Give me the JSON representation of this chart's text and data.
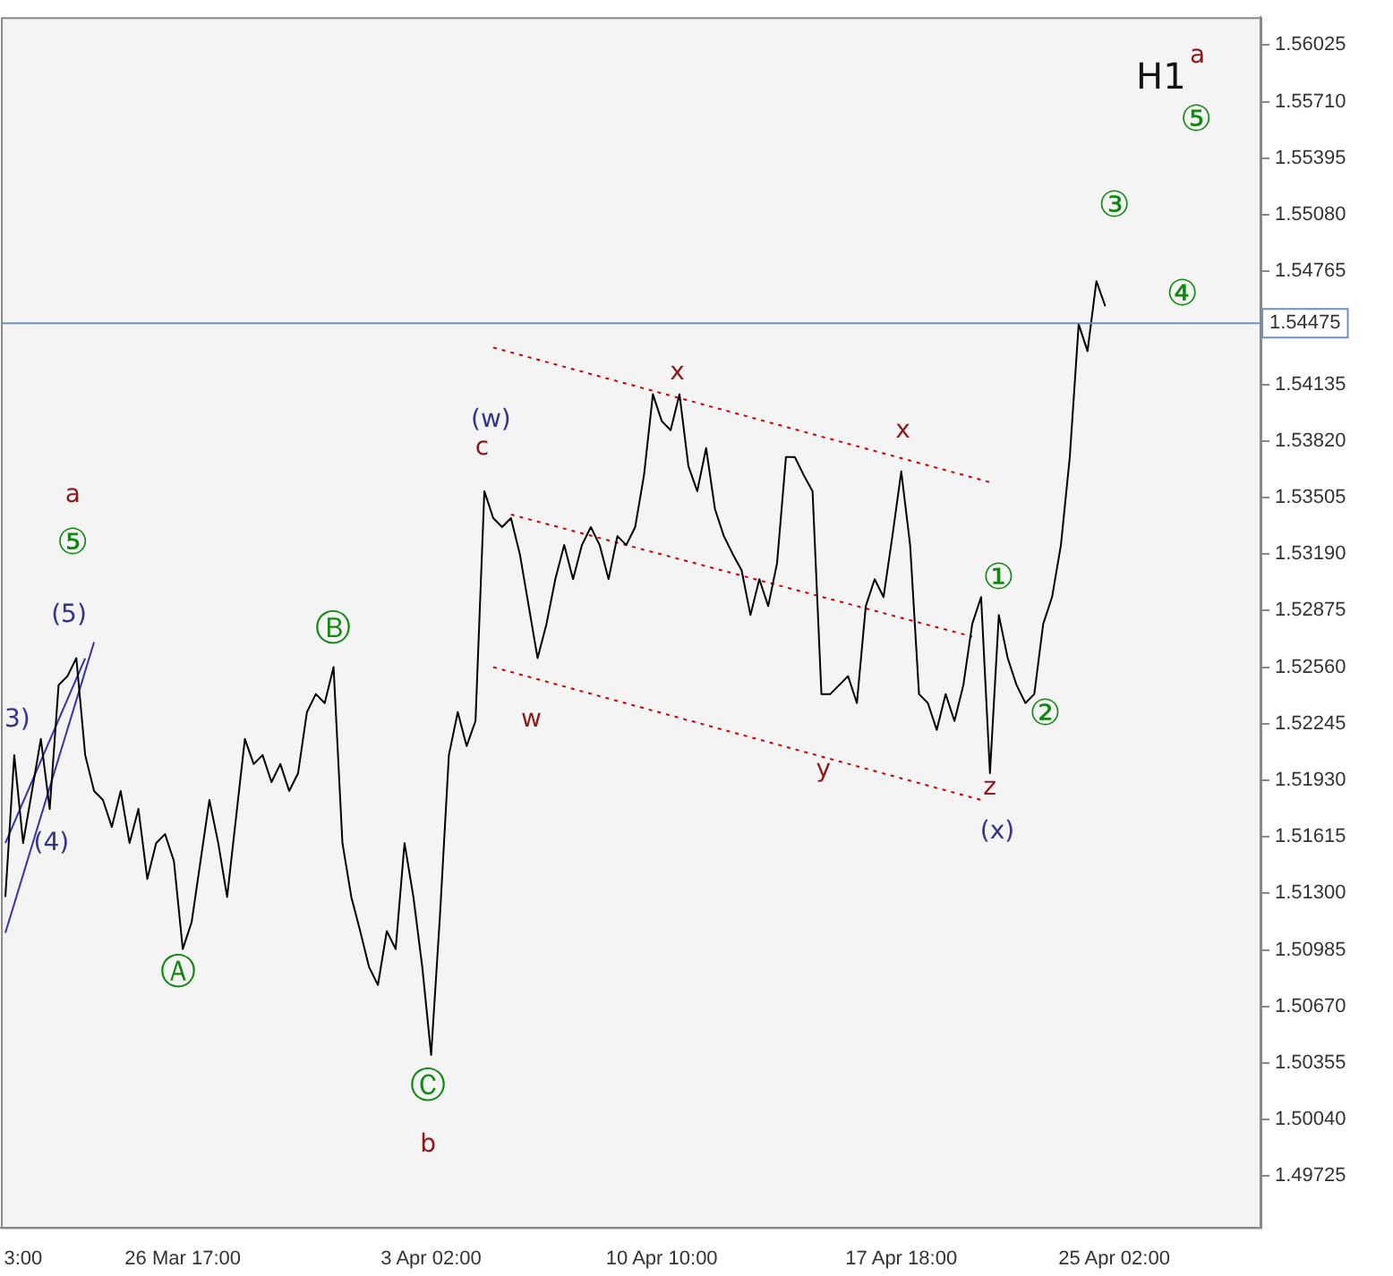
{
  "chart_data": {
    "type": "line",
    "categories": [
      null,
      null,
      "3:00",
      null,
      null,
      null,
      null,
      null,
      null,
      null,
      null,
      null,
      null,
      null,
      null,
      null,
      null,
      null,
      null,
      null,
      "26 Mar 17:00",
      null,
      null,
      null,
      null,
      null,
      null,
      null,
      null,
      null,
      null,
      null,
      null,
      null,
      null,
      null,
      null,
      null,
      null,
      null,
      null,
      null,
      null,
      null,
      null,
      null,
      null,
      null,
      "3 Apr 02:00",
      null,
      null,
      null,
      null,
      null,
      null,
      null,
      null,
      null,
      null,
      null,
      null,
      null,
      null,
      null,
      null,
      null,
      null,
      null,
      null,
      null,
      null,
      null,
      null,
      null,
      "10 Apr 10:00",
      null,
      null,
      null,
      null,
      null,
      null,
      null,
      null,
      null,
      null,
      null,
      null,
      null,
      null,
      null,
      null,
      null,
      null,
      null,
      null,
      null,
      null,
      null,
      null,
      null,
      null,
      "17 Apr 18:00",
      null,
      null,
      null,
      null,
      null,
      null,
      null,
      null,
      null,
      null,
      null,
      null,
      null,
      null,
      null,
      null,
      null,
      null,
      null,
      null,
      null,
      null,
      null,
      "25 Apr 02:00",
      null,
      null,
      null,
      null,
      null,
      null,
      null,
      null,
      null,
      null,
      null,
      null,
      null,
      null,
      null,
      null
    ],
    "ylim": [
      1.4944,
      1.5618
    ],
    "yticks": [
      {
        "value": 1.56025,
        "label": "1.56025"
      },
      {
        "value": 1.5571,
        "label": "1.55710"
      },
      {
        "value": 1.55395,
        "label": "1.55395"
      },
      {
        "value": 1.5508,
        "label": "1.55080"
      },
      {
        "value": 1.54765,
        "label": "1.54765"
      },
      {
        "value": 1.54135,
        "label": "1.54135"
      },
      {
        "value": 1.5382,
        "label": "1.53820"
      },
      {
        "value": 1.53505,
        "label": "1.53505"
      },
      {
        "value": 1.5319,
        "label": "1.53190"
      },
      {
        "value": 1.52875,
        "label": "1.52875"
      },
      {
        "value": 1.5256,
        "label": "1.52560"
      },
      {
        "value": 1.52245,
        "label": "1.52245"
      },
      {
        "value": 1.5193,
        "label": "1.51930"
      },
      {
        "value": 1.51615,
        "label": "1.51615"
      },
      {
        "value": 1.513,
        "label": "1.51300"
      },
      {
        "value": 1.50985,
        "label": "1.50985"
      },
      {
        "value": 1.5067,
        "label": "1.50670"
      },
      {
        "value": 1.50355,
        "label": "1.50355"
      },
      {
        "value": 1.5004,
        "label": "1.50040"
      },
      {
        "value": 1.49725,
        "label": "1.49725"
      }
    ],
    "grid": false,
    "legend": false,
    "marker": "none",
    "series": [
      {
        "color": "#000000",
        "line_style": "solid",
        "values": [
          1.5128,
          1.5207,
          1.5158,
          1.5187,
          1.5216,
          1.5177,
          1.5246,
          1.5251,
          1.5261,
          1.5207,
          1.5187,
          1.5182,
          1.5167,
          1.5187,
          1.5158,
          1.5177,
          1.5138,
          1.5158,
          1.5163,
          1.5148,
          1.5099,
          1.5114,
          1.5148,
          1.5182,
          1.5158,
          1.5128,
          1.5172,
          1.5216,
          1.5202,
          1.5207,
          1.5192,
          1.5202,
          1.5187,
          1.5197,
          1.5231,
          1.5241,
          1.5236,
          1.5256,
          1.5158,
          1.5128,
          1.5109,
          1.5089,
          1.5079,
          1.5109,
          1.5099,
          1.5158,
          1.5128,
          1.5089,
          1.504,
          1.5118,
          1.5207,
          1.5231,
          1.5212,
          1.5226,
          1.5354,
          1.5339,
          1.5334,
          1.5339,
          1.5319,
          1.529,
          1.5261,
          1.528,
          1.5305,
          1.5324,
          1.5305,
          1.5324,
          1.5334,
          1.5324,
          1.5305,
          1.5329,
          1.5324,
          1.5334,
          1.5363,
          1.5408,
          1.5393,
          1.5388,
          1.5408,
          1.5368,
          1.5354,
          1.5378,
          1.5344,
          1.5329,
          1.5319,
          1.531,
          1.5285,
          1.5305,
          1.529,
          1.5314,
          1.5373,
          1.5373,
          1.5363,
          1.5354,
          1.5241,
          1.5241,
          1.5246,
          1.5251,
          1.5236,
          1.529,
          1.5305,
          1.5295,
          1.5329,
          1.5365,
          1.5324,
          1.5241,
          1.5236,
          1.5221,
          1.5241,
          1.5226,
          1.5246,
          1.528,
          1.5295,
          1.5197,
          1.5285,
          1.5261,
          1.5246,
          1.5236,
          1.5241,
          1.528,
          1.5295,
          1.5324,
          1.5373,
          1.5447,
          1.5432,
          1.5471,
          1.5457,
          null,
          null,
          null,
          null,
          null,
          null,
          null,
          null,
          null,
          null,
          null,
          null,
          null,
          null,
          null,
          null,
          null
        ]
      },
      {
        "color": "#cc0000",
        "line_style": "dotted",
        "values": [
          null,
          null,
          null,
          null,
          null,
          null,
          null,
          null,
          null,
          null,
          null,
          null,
          null,
          null,
          null,
          null,
          null,
          null,
          null,
          null,
          null,
          null,
          null,
          null,
          null,
          null,
          null,
          null,
          null,
          null,
          null,
          null,
          null,
          null,
          null,
          null,
          null,
          null,
          null,
          null,
          null,
          null,
          null,
          null,
          null,
          null,
          null,
          null,
          null,
          null,
          null,
          null,
          null,
          null,
          null,
          1.5434,
          null,
          null,
          null,
          null,
          null,
          null,
          null,
          null,
          null,
          null,
          null,
          null,
          null,
          null,
          null,
          null,
          null,
          null,
          null,
          null,
          null,
          null,
          null,
          null,
          null,
          null,
          null,
          null,
          null,
          null,
          null,
          null,
          null,
          null,
          null,
          null,
          null,
          null,
          null,
          null,
          null,
          null,
          null,
          null,
          null,
          null,
          null,
          null,
          null,
          null,
          null,
          null,
          null,
          null,
          null,
          1.5359,
          null,
          null,
          null,
          null,
          null,
          null,
          null,
          null,
          null,
          null,
          null,
          null,
          null,
          null,
          null,
          null,
          null,
          null,
          null,
          null,
          null,
          null,
          null,
          null,
          null,
          null,
          null,
          null,
          null,
          null
        ]
      },
      {
        "color": "#cc0000",
        "line_style": "dotted",
        "values": [
          null,
          null,
          null,
          null,
          null,
          null,
          null,
          null,
          null,
          null,
          null,
          null,
          null,
          null,
          null,
          null,
          null,
          null,
          null,
          null,
          null,
          null,
          null,
          null,
          null,
          null,
          null,
          null,
          null,
          null,
          null,
          null,
          null,
          null,
          null,
          null,
          null,
          null,
          null,
          null,
          null,
          null,
          null,
          null,
          null,
          null,
          null,
          null,
          null,
          null,
          null,
          null,
          null,
          null,
          null,
          null,
          null,
          1.5341,
          null,
          null,
          null,
          null,
          null,
          null,
          null,
          null,
          null,
          null,
          null,
          null,
          null,
          null,
          null,
          null,
          null,
          null,
          null,
          null,
          null,
          null,
          null,
          null,
          null,
          null,
          null,
          null,
          null,
          null,
          null,
          null,
          null,
          null,
          null,
          null,
          null,
          null,
          null,
          null,
          null,
          null,
          null,
          null,
          null,
          null,
          null,
          null,
          null,
          null,
          null,
          1.5273,
          null,
          null,
          null,
          null,
          null,
          null,
          null,
          null,
          null,
          null,
          null,
          null,
          null,
          null,
          null,
          null,
          null,
          null,
          null,
          null,
          null,
          null,
          null,
          null,
          null,
          null,
          null,
          null,
          null,
          null,
          null,
          null
        ]
      },
      {
        "color": "#cc0000",
        "line_style": "dotted",
        "values": [
          null,
          null,
          null,
          null,
          null,
          null,
          null,
          null,
          null,
          null,
          null,
          null,
          null,
          null,
          null,
          null,
          null,
          null,
          null,
          null,
          null,
          null,
          null,
          null,
          null,
          null,
          null,
          null,
          null,
          null,
          null,
          null,
          null,
          null,
          null,
          null,
          null,
          null,
          null,
          null,
          null,
          null,
          null,
          null,
          null,
          null,
          null,
          null,
          null,
          null,
          null,
          null,
          null,
          null,
          null,
          1.5256,
          null,
          null,
          null,
          null,
          null,
          null,
          null,
          null,
          null,
          null,
          null,
          null,
          null,
          null,
          null,
          null,
          null,
          null,
          null,
          null,
          null,
          null,
          null,
          null,
          null,
          null,
          null,
          null,
          null,
          null,
          null,
          null,
          null,
          null,
          null,
          null,
          null,
          null,
          null,
          null,
          null,
          null,
          null,
          null,
          null,
          null,
          null,
          null,
          null,
          null,
          null,
          null,
          null,
          null,
          1.5182,
          null,
          null,
          null,
          null,
          null,
          null,
          null,
          null,
          null,
          null,
          null,
          null,
          null,
          null,
          null,
          null,
          null,
          null,
          null,
          null,
          null,
          null,
          null,
          null,
          null,
          null,
          null,
          null,
          null,
          null,
          null
        ]
      },
      {
        "color": "#3333aa",
        "line_style": "solid",
        "values": [
          1.5108,
          null,
          null,
          null,
          null,
          null,
          null,
          null,
          null,
          null,
          1.527,
          null,
          null,
          null,
          null,
          null,
          null,
          null,
          null,
          null,
          null,
          null,
          null,
          null,
          null,
          null,
          null,
          null,
          null,
          null,
          null,
          null,
          null,
          null,
          null,
          null,
          null,
          null,
          null,
          null,
          null,
          null,
          null,
          null,
          null,
          null,
          null,
          null,
          null,
          null,
          null,
          null,
          null,
          null,
          null,
          null,
          null,
          null,
          null,
          null,
          null,
          null,
          null,
          null,
          null,
          null,
          null,
          null,
          null,
          null,
          null,
          null,
          null,
          null,
          null,
          null,
          null,
          null,
          null,
          null,
          null,
          null,
          null,
          null,
          null,
          null,
          null,
          null,
          null,
          null,
          null,
          null,
          null,
          null,
          null,
          null,
          null,
          null,
          null,
          null,
          null,
          null,
          null,
          null,
          null,
          null,
          null,
          null,
          null,
          null,
          null,
          null,
          null,
          null,
          null,
          null,
          null,
          null,
          null,
          null,
          null,
          null,
          null,
          null,
          null,
          null,
          null,
          null,
          null,
          null,
          null,
          null,
          null,
          null,
          null,
          null,
          null,
          null,
          null,
          null,
          null,
          null
        ]
      },
      {
        "color": "#3333aa",
        "line_style": "solid",
        "values": [
          1.5158,
          null,
          null,
          null,
          null,
          null,
          null,
          null,
          null,
          1.5261,
          null,
          null,
          null,
          null,
          null,
          null,
          null,
          null,
          null,
          null,
          null,
          null,
          null,
          null,
          null,
          null,
          null,
          null,
          null,
          null,
          null,
          null,
          null,
          null,
          null,
          null,
          null,
          null,
          null,
          null,
          null,
          null,
          null,
          null,
          null,
          null,
          null,
          null,
          null,
          null,
          null,
          null,
          null,
          null,
          null,
          null,
          null,
          null,
          null,
          null,
          null,
          null,
          null,
          null,
          null,
          null,
          null,
          null,
          null,
          null,
          null,
          null,
          null,
          null,
          null,
          null,
          null,
          null,
          null,
          null,
          null,
          null,
          null,
          null,
          null,
          null,
          null,
          null,
          null,
          null,
          null,
          null,
          null,
          null,
          null,
          null,
          null,
          null,
          null,
          null,
          null,
          null,
          null,
          null,
          null,
          null,
          null,
          null,
          null,
          null,
          null,
          null,
          null,
          null,
          null,
          null,
          null,
          null,
          null,
          null,
          null,
          null,
          null,
          null,
          null,
          null,
          null,
          null,
          null,
          null,
          null,
          null,
          null,
          null,
          null,
          null,
          null,
          null,
          null,
          null,
          null,
          null
        ]
      }
    ],
    "ref_lines": [
      {
        "axis": "y",
        "value": 1.54475,
        "label": "1.54475",
        "color": "#6f8fbf"
      }
    ],
    "annotations": [
      "H1",
      "a",
      "⑤",
      "③",
      "④",
      "a",
      "⑤",
      "(5)",
      "3)",
      "(4)",
      "Ⓑ",
      "Ⓐ",
      "Ⓒ",
      "b",
      "(w)",
      "c",
      "w",
      "x",
      "x",
      "y",
      "z",
      "(x)",
      "①",
      "②"
    ]
  }
}
